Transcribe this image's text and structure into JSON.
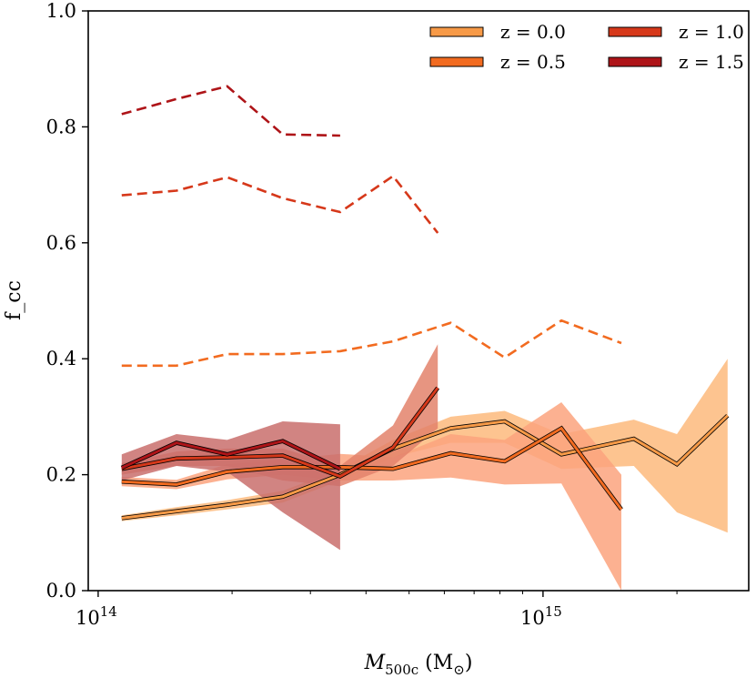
{
  "chart_data": {
    "type": "line",
    "title": "",
    "xlabel": "M_500c (M_sun)",
    "xlabel_main": "M",
    "xlabel_sub": "500c",
    "xlabel_unit_open": " (M",
    "xlabel_unit_close": ")",
    "ylabel": "f_cc",
    "xscale": "log",
    "xlim": [
      95000000000000.0,
      2900000000000000.0
    ],
    "ylim": [
      0.0,
      1.0
    ],
    "yticks": [
      0.0,
      0.2,
      0.4,
      0.6,
      0.8,
      1.0
    ],
    "ytick_labels": [
      "0.0",
      "0.2",
      "0.4",
      "0.6",
      "0.8",
      "1.0"
    ],
    "xticks_major": [
      100000000000000.0,
      1000000000000000.0
    ],
    "xtick_labels": [
      {
        "base": "10",
        "exp": "14"
      },
      {
        "base": "10",
        "exp": "15"
      }
    ],
    "xticks_minor": [
      200000000000000.0,
      300000000000000.0,
      400000000000000.0,
      500000000000000.0,
      600000000000000.0,
      700000000000000.0,
      800000000000000.0,
      900000000000000.0,
      2000000000000000.0
    ],
    "legend_position": "top-right",
    "series": [
      {
        "name": "z = 0.0",
        "color": "#f79a47",
        "band_color": "#fdba7c",
        "x": [
          113000000000000.0,
          150000000000000.0,
          195000000000000.0,
          260000000000000.0,
          350000000000000.0,
          460000000000000.0,
          620000000000000.0,
          820000000000000.0,
          1100000000000000.0,
          1600000000000000.0,
          2000000000000000.0,
          2600000000000000.0
        ],
        "values": [
          0.125,
          0.137,
          0.148,
          0.162,
          0.2,
          0.245,
          0.28,
          0.292,
          0.235,
          0.262,
          0.218,
          0.302
        ],
        "band_low": [
          0.12,
          0.13,
          0.14,
          0.152,
          0.19,
          0.23,
          0.255,
          0.255,
          0.21,
          0.215,
          0.135,
          0.1
        ],
        "band_high": [
          0.13,
          0.144,
          0.156,
          0.172,
          0.21,
          0.26,
          0.3,
          0.31,
          0.27,
          0.295,
          0.27,
          0.4
        ],
        "fiducial": null
      },
      {
        "name": "z = 0.5",
        "color": "#f26b20",
        "band_color": "#fca37e",
        "x": [
          113000000000000.0,
          150000000000000.0,
          195000000000000.0,
          260000000000000.0,
          350000000000000.0,
          460000000000000.0,
          620000000000000.0,
          820000000000000.0,
          1100000000000000.0,
          1500000000000000.0
        ],
        "values": [
          0.188,
          0.183,
          0.205,
          0.213,
          0.213,
          0.21,
          0.237,
          0.223,
          0.28,
          0.14
        ],
        "band_low": [
          0.18,
          0.175,
          0.192,
          0.2,
          0.19,
          0.19,
          0.195,
          0.183,
          0.185,
          0.0
        ],
        "band_high": [
          0.196,
          0.191,
          0.218,
          0.226,
          0.236,
          0.23,
          0.27,
          0.26,
          0.325,
          0.2
        ],
        "fiducial": {
          "x": [
            113000000000000.0,
            150000000000000.0,
            195000000000000.0,
            260000000000000.0,
            350000000000000.0,
            460000000000000.0,
            620000000000000.0,
            820000000000000.0,
            1100000000000000.0,
            1500000000000000.0
          ],
          "values": [
            0.388,
            0.388,
            0.408,
            0.408,
            0.413,
            0.43,
            0.462,
            0.402,
            0.466,
            0.427
          ]
        }
      },
      {
        "name": "z = 1.0",
        "color": "#d6381a",
        "band_color": "#e3836b",
        "x": [
          113000000000000.0,
          150000000000000.0,
          195000000000000.0,
          260000000000000.0,
          350000000000000.0,
          460000000000000.0,
          580000000000000.0
        ],
        "values": [
          0.21,
          0.228,
          0.23,
          0.233,
          0.197,
          0.247,
          0.35
        ],
        "band_low": [
          0.2,
          0.215,
          0.215,
          0.19,
          0.18,
          0.215,
          0.28
        ],
        "band_high": [
          0.22,
          0.24,
          0.245,
          0.245,
          0.215,
          0.285,
          0.425
        ],
        "fiducial": {
          "x": [
            113000000000000.0,
            150000000000000.0,
            195000000000000.0,
            260000000000000.0,
            350000000000000.0,
            460000000000000.0,
            580000000000000.0
          ],
          "values": [
            0.682,
            0.69,
            0.713,
            0.677,
            0.653,
            0.715,
            0.617
          ]
        }
      },
      {
        "name": "z = 1.5",
        "color": "#ae1418",
        "band_color": "#c96e6c",
        "x": [
          113000000000000.0,
          150000000000000.0,
          195000000000000.0,
          260000000000000.0,
          350000000000000.0
        ],
        "values": [
          0.212,
          0.255,
          0.235,
          0.258,
          0.21
        ],
        "band_low": [
          0.19,
          0.215,
          0.205,
          0.135,
          0.07
        ],
        "band_high": [
          0.235,
          0.27,
          0.26,
          0.292,
          0.287
        ],
        "fiducial": {
          "x": [
            113000000000000.0,
            150000000000000.0,
            195000000000000.0,
            260000000000000.0,
            350000000000000.0
          ],
          "values": [
            0.822,
            0.848,
            0.87,
            0.787,
            0.785
          ]
        }
      }
    ]
  }
}
